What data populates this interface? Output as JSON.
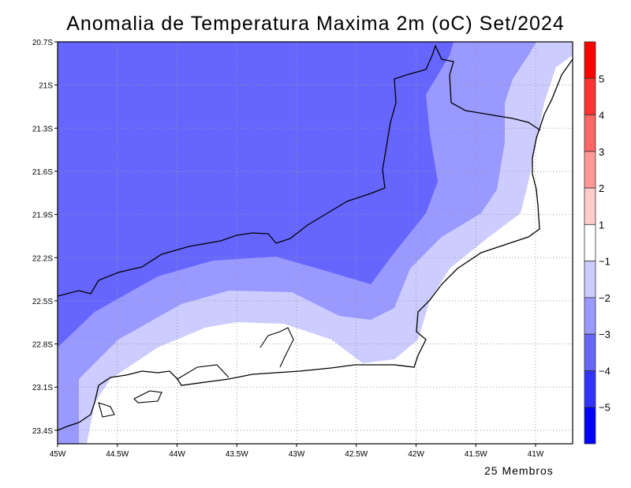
{
  "title": "Anomalia de Temperatura Maxima 2m (oC) Set/2024",
  "footer": "25 Membros",
  "map": {
    "lon_range": [
      -45,
      -40.7
    ],
    "lat_range": [
      -23.5,
      -20.7
    ],
    "lon_ticks": [
      "45W",
      "44.5W",
      "44W",
      "43.5W",
      "43W",
      "42.5W",
      "42W",
      "41.5W",
      "41W"
    ],
    "lat_ticks": [
      "20.7S",
      "21S",
      "21.3S",
      "21.6S",
      "21.9S",
      "22.2S",
      "22.5S",
      "22.8S",
      "23.1S",
      "23.4S"
    ]
  },
  "colorbar": {
    "colors": [
      "#ff0000",
      "#ff3333",
      "#ff6666",
      "#ff9999",
      "#ffcccc",
      "#ffffff",
      "#ccccff",
      "#9999ff",
      "#6666ff",
      "#3333ff",
      "#0000ff"
    ],
    "labels": [
      "5",
      "4",
      "3",
      "2",
      "1",
      "-1",
      "-2",
      "-3",
      "-4",
      "-5"
    ]
  }
}
